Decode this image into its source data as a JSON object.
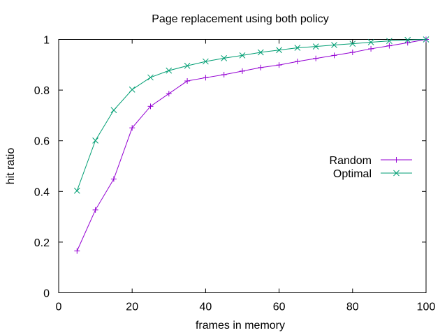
{
  "chart_data": {
    "type": "line",
    "title": "Page replacement using both policy",
    "xlabel": "frames in memory",
    "ylabel": "hit ratio",
    "xlim": [
      0,
      100
    ],
    "ylim": [
      0,
      1
    ],
    "xticks": [
      {
        "value": 0,
        "label": "0"
      },
      {
        "value": 20,
        "label": "20"
      },
      {
        "value": 40,
        "label": "40"
      },
      {
        "value": 60,
        "label": "60"
      },
      {
        "value": 80,
        "label": "80"
      },
      {
        "value": 100,
        "label": "100"
      }
    ],
    "yticks": [
      {
        "value": 0,
        "label": "0"
      },
      {
        "value": 0.2,
        "label": "0.2"
      },
      {
        "value": 0.4,
        "label": "0.4"
      },
      {
        "value": 0.6,
        "label": "0.6"
      },
      {
        "value": 0.8,
        "label": "0.8"
      },
      {
        "value": 1,
        "label": "1"
      }
    ],
    "grid": false,
    "legend_position": "right",
    "series": [
      {
        "name": "Random",
        "color": "#9400d3",
        "marker": "plus",
        "x": [
          5,
          10,
          15,
          20,
          25,
          30,
          35,
          40,
          45,
          50,
          55,
          60,
          65,
          70,
          75,
          80,
          85,
          90,
          95,
          100
        ],
        "y": [
          0.165,
          0.327,
          0.449,
          0.651,
          0.736,
          0.786,
          0.836,
          0.849,
          0.861,
          0.875,
          0.889,
          0.899,
          0.913,
          0.925,
          0.937,
          0.949,
          0.963,
          0.975,
          0.987,
          1.0
        ]
      },
      {
        "name": "Optimal",
        "color": "#009e73",
        "marker": "cross",
        "x": [
          5,
          10,
          15,
          20,
          25,
          30,
          35,
          40,
          45,
          50,
          55,
          60,
          65,
          70,
          75,
          80,
          85,
          90,
          95,
          100
        ],
        "y": [
          0.403,
          0.601,
          0.721,
          0.802,
          0.85,
          0.877,
          0.896,
          0.913,
          0.926,
          0.937,
          0.949,
          0.958,
          0.967,
          0.972,
          0.978,
          0.983,
          0.989,
          0.994,
          0.998,
          1.0
        ]
      }
    ]
  }
}
